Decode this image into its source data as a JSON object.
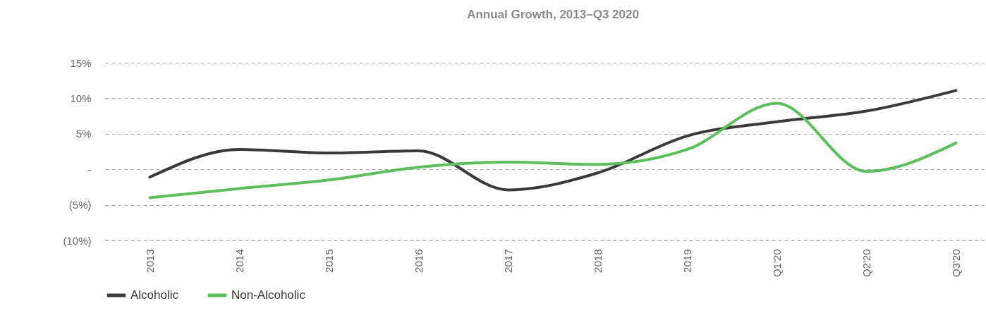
{
  "chart_data": {
    "type": "line",
    "title": "Annual Growth, 2013–Q3 2020",
    "categories": [
      "2013",
      "2014",
      "2015",
      "2016",
      "2017",
      "2018",
      "2019",
      "Q1'20",
      "Q2'20",
      "Q3'20"
    ],
    "series": [
      {
        "name": "Alcoholic",
        "color": "#3a3a3a",
        "values": [
          -1.1,
          2.8,
          2.3,
          2.6,
          -2.9,
          -0.5,
          4.7,
          6.7,
          8.2,
          11.1
        ]
      },
      {
        "name": "Non-Alcoholic",
        "color": "#5cbf5c",
        "values": [
          -4.0,
          -2.7,
          -1.5,
          0.3,
          1.0,
          0.7,
          2.8,
          9.3,
          -0.3,
          3.7
        ]
      }
    ],
    "ylim": [
      -10,
      15
    ],
    "yticks": [
      {
        "value": -10,
        "label": "(10%)"
      },
      {
        "value": -5,
        "label": "(5%)"
      },
      {
        "value": 0,
        "label": "-"
      },
      {
        "value": 5,
        "label": "5%"
      },
      {
        "value": 10,
        "label": "10%"
      },
      {
        "value": 15,
        "label": "15%"
      }
    ],
    "grid": "y",
    "legend": "bottom",
    "marker": "none",
    "line_style": "solid"
  }
}
